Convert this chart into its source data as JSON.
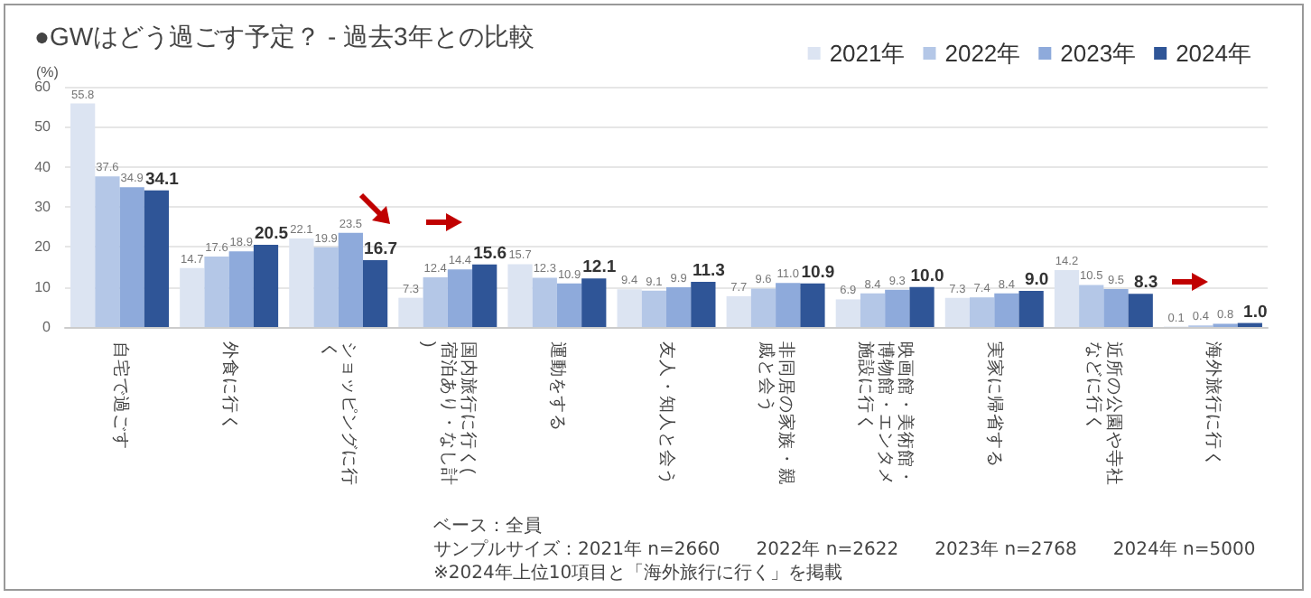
{
  "chart_data": {
    "type": "bar",
    "title": "●GWはどう過ごす予定？ - 過去3年との比較",
    "ylabel": "(%)",
    "categories": [
      "自宅で過ごす",
      "外食に行く",
      "ショッピングに行く",
      "国内旅行に行く(宿泊あり・なし計)",
      "運動をする",
      "友人・知人と会う",
      "非同居の家族・親戚と会う",
      "映画館・美術館・博物館・エンタメ施設に行く",
      "実家に帰省する",
      "近所の公園や寺社などに行く",
      "海外旅行に行く"
    ],
    "series": [
      {
        "name": "2021年",
        "color": "#dce4f2",
        "values": [
          55.8,
          14.7,
          22.1,
          7.3,
          15.7,
          9.4,
          7.7,
          6.9,
          7.3,
          14.2,
          0.1
        ],
        "value_labels": [
          "55.8",
          "14.7",
          "22.1",
          "7.3",
          "15.7",
          "9.4",
          "7.7",
          "6.9",
          "7.3",
          "14.2",
          "0.1"
        ]
      },
      {
        "name": "2022年",
        "color": "#b4c7e7",
        "values": [
          37.6,
          17.6,
          19.9,
          12.4,
          12.3,
          9.1,
          9.6,
          8.4,
          7.4,
          10.5,
          0.4
        ],
        "value_labels": [
          "37.6",
          "17.6",
          "19.9",
          "12.4",
          "12.3",
          "9.1",
          "9.6",
          "8.4",
          "7.4",
          "10.5",
          "0.4"
        ]
      },
      {
        "name": "2023年",
        "color": "#8eaadb",
        "values": [
          34.9,
          18.9,
          23.5,
          14.4,
          10.9,
          9.9,
          11.0,
          9.3,
          8.4,
          9.5,
          0.8
        ],
        "value_labels": [
          "34.9",
          "18.9",
          "23.5",
          "14.4",
          "10.9",
          "9.9",
          "11.0",
          "9.3",
          "8.4",
          "9.5",
          "0.8"
        ]
      },
      {
        "name": "2024年",
        "color": "#2f5597",
        "values": [
          34.1,
          20.5,
          16.7,
          15.6,
          12.1,
          11.3,
          10.9,
          10.0,
          9.0,
          8.3,
          1.0
        ],
        "value_labels": [
          "34.1",
          "20.5",
          "16.7",
          "15.6",
          "12.1",
          "11.3",
          "10.9",
          "10.0",
          "9.0",
          "8.3",
          "1.0"
        ]
      }
    ],
    "ylim": [
      0,
      60
    ],
    "yticks": [
      0,
      10,
      20,
      30,
      40,
      50,
      60
    ],
    "grid": "y",
    "legend": "top right",
    "annotations": [
      "ベース：全員",
      "サンプルサイズ：2021年 n=2660　　2022年 n=2622　　2023年 n=2768　　2024年 n=5000",
      "※2024年上位10項目と「海外旅行に行く」を掲載"
    ]
  }
}
